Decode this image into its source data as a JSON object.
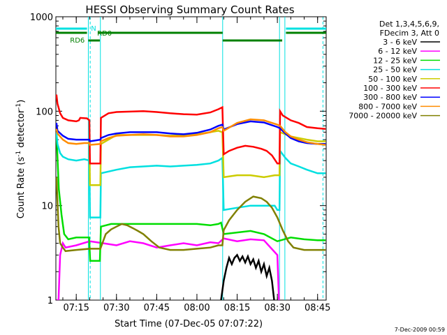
{
  "chart_data": {
    "type": "line",
    "title": "HESSI Observing Summary Count Rates",
    "xlabel": "Start Time (07-Dec-05 07:07:22)",
    "ylabel_main": "Count Rate (s",
    "ylabel_sup1": "-1",
    "ylabel_mid": " detector",
    "ylabel_sup2": "-1",
    "ylabel_end": ")",
    "yscale": "log",
    "ylim": [
      1,
      1000
    ],
    "xlim_minutes": [
      67.4,
      168.2
    ],
    "x_ticks": [
      {
        "minute": 75,
        "label": "07:15"
      },
      {
        "minute": 90,
        "label": "07:30"
      },
      {
        "minute": 105,
        "label": "07:45"
      },
      {
        "minute": 120,
        "label": "08:00"
      },
      {
        "minute": 135,
        "label": "08:15"
      },
      {
        "minute": 150,
        "label": "08:30"
      },
      {
        "minute": 165,
        "label": "08:45"
      }
    ],
    "y_ticks": [
      {
        "value": 1,
        "label": "1"
      },
      {
        "value": 10,
        "label": "10"
      },
      {
        "value": 100,
        "label": "100"
      },
      {
        "value": 1000,
        "label": "1000"
      }
    ],
    "legend_header": [
      "Det 1,3,4,5,6,9,",
      "FDecim 3, Att 0"
    ],
    "legend_placement": "right",
    "series": [
      {
        "name": "3 - 6 keV",
        "color": "#000000",
        "points": [
          [
            129,
            1.0
          ],
          [
            130,
            1.6
          ],
          [
            131,
            2.2
          ],
          [
            132,
            2.8
          ],
          [
            133,
            2.4
          ],
          [
            134,
            2.8
          ],
          [
            135,
            3.0
          ],
          [
            136,
            2.6
          ],
          [
            137,
            2.9
          ],
          [
            138,
            2.5
          ],
          [
            139,
            2.9
          ],
          [
            140,
            2.4
          ],
          [
            141,
            2.7
          ],
          [
            142,
            2.2
          ],
          [
            143,
            2.6
          ],
          [
            144,
            2.0
          ],
          [
            145,
            2.4
          ],
          [
            146,
            1.8
          ],
          [
            147,
            2.2
          ],
          [
            148,
            1.6
          ],
          [
            148.8,
            1.0
          ]
        ]
      },
      {
        "name": "6 - 12 keV",
        "color": "#ff00ff",
        "points": [
          [
            67.6,
            1.0
          ],
          [
            68.4,
            1.0
          ],
          [
            69,
            3.0
          ],
          [
            70,
            4.0
          ],
          [
            71,
            3.6
          ],
          [
            75,
            3.8
          ],
          [
            80,
            4.2
          ],
          [
            85,
            4.0
          ],
          [
            90,
            3.8
          ],
          [
            95,
            4.2
          ],
          [
            100,
            4.0
          ],
          [
            105,
            3.6
          ],
          [
            110,
            3.8
          ],
          [
            115,
            4.0
          ],
          [
            120,
            3.8
          ],
          [
            125,
            4.1
          ],
          [
            128,
            4.0
          ],
          [
            130,
            4.5
          ],
          [
            135,
            4.2
          ],
          [
            140,
            4.4
          ],
          [
            145,
            4.3
          ],
          [
            150,
            3.0
          ],
          [
            150.6,
            1.0
          ]
        ]
      },
      {
        "name": "12 - 25 keV",
        "color": "#00dd00",
        "points": [
          [
            67.6,
            60
          ],
          [
            68.5,
            15
          ],
          [
            69.5,
            8
          ],
          [
            70.5,
            5
          ],
          [
            72,
            4.4
          ],
          [
            75,
            4.6
          ],
          [
            78,
            4.6
          ],
          [
            79.8,
            4.6
          ],
          [
            80.2,
            2.6
          ],
          [
            83,
            2.6
          ],
          [
            83.8,
            2.6
          ],
          [
            84.2,
            6.0
          ],
          [
            88,
            6.4
          ],
          [
            95,
            6.4
          ],
          [
            100,
            6.4
          ],
          [
            105,
            6.4
          ],
          [
            110,
            6.4
          ],
          [
            115,
            6.4
          ],
          [
            120,
            6.4
          ],
          [
            125,
            6.2
          ],
          [
            128,
            6.4
          ],
          [
            129,
            6.6
          ],
          [
            130,
            5.0
          ],
          [
            135,
            5.2
          ],
          [
            140,
            5.4
          ],
          [
            145,
            5.0
          ],
          [
            150,
            4.2
          ],
          [
            155,
            4.6
          ],
          [
            160,
            4.4
          ],
          [
            165,
            4.3
          ],
          [
            168,
            4.3
          ]
        ]
      },
      {
        "name": "25 - 50 keV",
        "color": "#00e0e0",
        "points": [
          [
            67.6,
            60
          ],
          [
            68,
            45
          ],
          [
            69,
            36
          ],
          [
            70,
            33
          ],
          [
            72,
            31
          ],
          [
            75,
            30
          ],
          [
            78,
            31
          ],
          [
            79.9,
            30
          ],
          [
            80.1,
            7.5
          ],
          [
            84,
            7.5
          ],
          [
            84.2,
            22
          ],
          [
            90,
            24
          ],
          [
            95,
            25.5
          ],
          [
            100,
            26
          ],
          [
            105,
            26.5
          ],
          [
            110,
            26
          ],
          [
            115,
            26.5
          ],
          [
            120,
            27
          ],
          [
            125,
            28
          ],
          [
            128,
            30
          ],
          [
            129.5,
            32
          ],
          [
            130,
            9.0
          ],
          [
            135,
            9.5
          ],
          [
            140,
            10
          ],
          [
            143,
            10
          ],
          [
            145,
            10
          ],
          [
            149,
            10
          ],
          [
            150,
            9
          ],
          [
            150.8,
            9
          ],
          [
            151,
            38
          ],
          [
            153,
            32
          ],
          [
            155,
            28
          ],
          [
            158,
            26
          ],
          [
            161,
            24
          ],
          [
            165,
            22
          ],
          [
            168,
            22
          ]
        ]
      },
      {
        "name": "50 - 100 keV",
        "color": "#cccc00",
        "points": [
          [
            79.9,
            50
          ],
          [
            80.1,
            16.5
          ],
          [
            84,
            16.5
          ],
          [
            84.2,
            45
          ],
          [
            90,
            56
          ],
          [
            100,
            56
          ],
          [
            105,
            56
          ],
          [
            110,
            55
          ],
          [
            115,
            56
          ],
          [
            120,
            57
          ],
          [
            125,
            60
          ],
          [
            128,
            62
          ],
          [
            129.5,
            60
          ],
          [
            130,
            20
          ],
          [
            135,
            21
          ],
          [
            140,
            21
          ],
          [
            145,
            20
          ],
          [
            149,
            21
          ],
          [
            150.8,
            21
          ],
          [
            151,
            60
          ],
          [
            155,
            54
          ],
          [
            158,
            52
          ],
          [
            161,
            50
          ],
          [
            165,
            48
          ],
          [
            168,
            48
          ]
        ]
      },
      {
        "name": "100 - 300 keV",
        "color": "#ff0000",
        "points": [
          [
            67.6,
            150
          ],
          [
            68,
            120
          ],
          [
            69,
            95
          ],
          [
            70,
            85
          ],
          [
            72,
            80
          ],
          [
            75,
            78
          ],
          [
            76,
            80
          ],
          [
            76.5,
            85
          ],
          [
            79,
            84
          ],
          [
            79.9,
            80
          ],
          [
            80.1,
            28
          ],
          [
            84,
            28
          ],
          [
            84.2,
            85
          ],
          [
            87,
            95
          ],
          [
            90,
            98
          ],
          [
            95,
            99
          ],
          [
            100,
            100
          ],
          [
            105,
            98
          ],
          [
            110,
            95
          ],
          [
            115,
            93
          ],
          [
            120,
            92
          ],
          [
            125,
            97
          ],
          [
            128,
            105
          ],
          [
            129.5,
            110
          ],
          [
            130,
            35
          ],
          [
            132,
            38
          ],
          [
            135,
            41
          ],
          [
            138,
            43
          ],
          [
            141,
            42
          ],
          [
            144,
            40
          ],
          [
            146,
            38
          ],
          [
            148,
            34
          ],
          [
            150,
            28
          ],
          [
            150.8,
            28
          ],
          [
            151,
            100
          ],
          [
            152,
            90
          ],
          [
            155,
            80
          ],
          [
            158,
            75
          ],
          [
            161,
            68
          ],
          [
            165,
            66
          ],
          [
            168,
            65
          ]
        ]
      },
      {
        "name": "300 - 800 keV",
        "color": "#0000ff",
        "points": [
          [
            67.6,
            75
          ],
          [
            68,
            62
          ],
          [
            70,
            55
          ],
          [
            72,
            51
          ],
          [
            75,
            50
          ],
          [
            78,
            50
          ],
          [
            79.9,
            50
          ],
          [
            80.1,
            48
          ],
          [
            84,
            50
          ],
          [
            84.2,
            52
          ],
          [
            87,
            56
          ],
          [
            90,
            58
          ],
          [
            95,
            60
          ],
          [
            100,
            60
          ],
          [
            105,
            60
          ],
          [
            110,
            58
          ],
          [
            115,
            57
          ],
          [
            120,
            59
          ],
          [
            125,
            64
          ],
          [
            128,
            70
          ],
          [
            129.5,
            72
          ],
          [
            130,
            64
          ],
          [
            135,
            73
          ],
          [
            140,
            78
          ],
          [
            145,
            76
          ],
          [
            150,
            68
          ],
          [
            151,
            66
          ],
          [
            153,
            58
          ],
          [
            155,
            52
          ],
          [
            158,
            48
          ],
          [
            161,
            46
          ],
          [
            165,
            45
          ],
          [
            168,
            45
          ]
        ]
      },
      {
        "name": "800 - 7000 keV",
        "color": "#ff8c00",
        "points": [
          [
            67.6,
            65
          ],
          [
            68,
            58
          ],
          [
            70,
            50
          ],
          [
            72,
            46
          ],
          [
            75,
            45
          ],
          [
            78,
            46
          ],
          [
            79.9,
            46
          ],
          [
            80.1,
            44
          ],
          [
            84,
            45
          ],
          [
            84.2,
            48
          ],
          [
            87,
            52
          ],
          [
            90,
            55
          ],
          [
            95,
            56
          ],
          [
            100,
            57
          ],
          [
            105,
            56
          ],
          [
            110,
            54
          ],
          [
            115,
            54
          ],
          [
            120,
            56
          ],
          [
            125,
            60
          ],
          [
            128,
            66
          ],
          [
            129.5,
            68
          ],
          [
            130,
            62
          ],
          [
            135,
            75
          ],
          [
            140,
            82
          ],
          [
            145,
            80
          ],
          [
            150,
            72
          ],
          [
            151,
            70
          ],
          [
            153,
            60
          ],
          [
            155,
            54
          ],
          [
            158,
            50
          ],
          [
            161,
            47
          ],
          [
            165,
            45
          ],
          [
            168,
            44
          ]
        ]
      },
      {
        "name": "7000 - 20000 keV",
        "color": "#808000",
        "points": [
          [
            67.6,
            20
          ],
          [
            68.4,
            6
          ],
          [
            69,
            4.0
          ],
          [
            70,
            3.6
          ],
          [
            71,
            3.3
          ],
          [
            75,
            3.4
          ],
          [
            80,
            3.5
          ],
          [
            84,
            3.5
          ],
          [
            86,
            5.0
          ],
          [
            88,
            5.6
          ],
          [
            90,
            6.0
          ],
          [
            92,
            6.4
          ],
          [
            94,
            6.2
          ],
          [
            96,
            5.8
          ],
          [
            98,
            5.4
          ],
          [
            100,
            5.0
          ],
          [
            103,
            4.2
          ],
          [
            106,
            3.6
          ],
          [
            110,
            3.4
          ],
          [
            115,
            3.4
          ],
          [
            120,
            3.5
          ],
          [
            125,
            3.6
          ],
          [
            128,
            3.8
          ],
          [
            129.5,
            3.8
          ],
          [
            130,
            5.5
          ],
          [
            132,
            7.0
          ],
          [
            135,
            9.0
          ],
          [
            138,
            11
          ],
          [
            141,
            12.5
          ],
          [
            144,
            12
          ],
          [
            146,
            11
          ],
          [
            148,
            9.5
          ],
          [
            150,
            7.5
          ],
          [
            152,
            5.5
          ],
          [
            154,
            4.2
          ],
          [
            156,
            3.6
          ],
          [
            160,
            3.4
          ],
          [
            165,
            3.4
          ],
          [
            168,
            3.4
          ]
        ]
      }
    ],
    "status_bars": [
      {
        "label": "N",
        "color": "#00e0e0",
        "row": 0,
        "intervals": [
          [
            67.4,
            79.0
          ],
          [
            153.2,
            168.2
          ]
        ]
      },
      {
        "label": "RD0",
        "color": "#008000",
        "row": 1,
        "intervals": [
          [
            67.4,
            79.0
          ],
          [
            83.0,
            129.6
          ],
          [
            153.2,
            168.2
          ]
        ]
      },
      {
        "label": "RD6",
        "color": "#008000",
        "row": 2,
        "intervals": [
          [
            79.5,
            83.8
          ],
          [
            129.6,
            151.8
          ]
        ]
      }
    ],
    "vlines": [
      {
        "minute": 79.5,
        "style": "solid",
        "color": "#00e0e0"
      },
      {
        "minute": 80.2,
        "style": "dashed",
        "color": "#00e0e0"
      },
      {
        "minute": 84.0,
        "style": "solid",
        "color": "#00e0e0"
      },
      {
        "minute": 129.6,
        "style": "solid",
        "color": "#00e0e0"
      },
      {
        "minute": 150.8,
        "style": "solid",
        "color": "#00e0e0"
      },
      {
        "minute": 152.8,
        "style": "solid",
        "color": "#00e0e0"
      },
      {
        "minute": 167.0,
        "style": "dashed",
        "color": "#00e0e0"
      }
    ]
  },
  "footer_stamp": "7-Dec-2009 00:59"
}
